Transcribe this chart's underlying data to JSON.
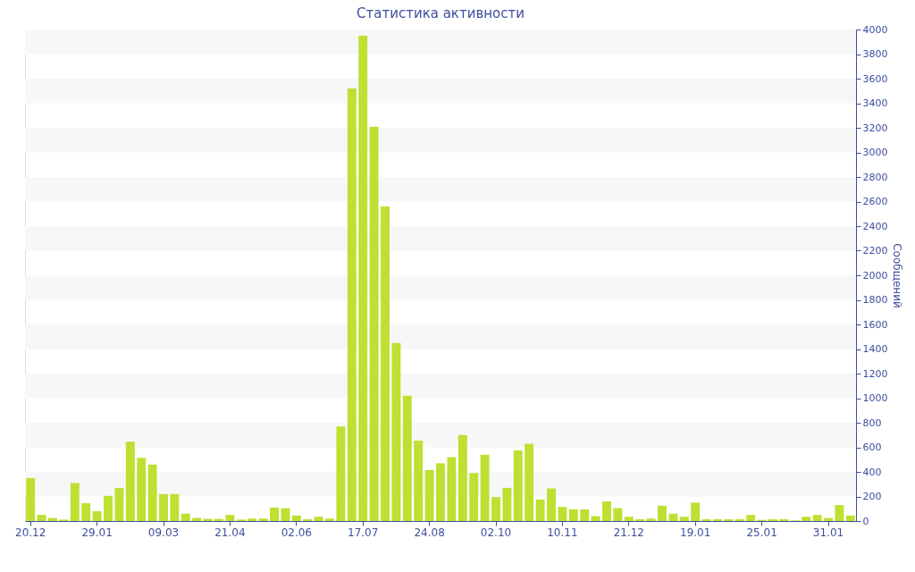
{
  "chart_data": {
    "type": "bar",
    "title": "Статистика активности",
    "ylabel": "Сообщений",
    "categories": [
      "20.12",
      null,
      null,
      null,
      null,
      null,
      "29.01",
      null,
      null,
      null,
      null,
      null,
      "09.03",
      null,
      null,
      null,
      null,
      null,
      "21.04",
      null,
      null,
      null,
      null,
      null,
      "02.06",
      null,
      null,
      null,
      null,
      null,
      "17.07",
      null,
      null,
      null,
      null,
      null,
      "24.08",
      null,
      null,
      null,
      null,
      null,
      "02.10",
      null,
      null,
      null,
      null,
      null,
      "10.11",
      null,
      null,
      null,
      null,
      null,
      "21.12",
      null,
      null,
      null,
      null,
      null,
      "19.01",
      null,
      null,
      null,
      null,
      null,
      "25.01",
      null,
      null,
      null,
      null,
      null,
      "31.01",
      null,
      null
    ],
    "values": [
      350,
      50,
      25,
      12,
      310,
      145,
      80,
      205,
      270,
      645,
      515,
      460,
      220,
      220,
      60,
      25,
      18,
      18,
      50,
      12,
      20,
      20,
      110,
      105,
      45,
      15,
      35,
      20,
      770,
      3520,
      3950,
      3210,
      2560,
      1450,
      1020,
      655,
      415,
      470,
      520,
      700,
      390,
      540,
      195,
      270,
      575,
      630,
      175,
      265,
      115,
      95,
      95,
      40,
      160,
      105,
      35,
      15,
      20,
      125,
      60,
      35,
      150,
      15,
      15,
      15,
      15,
      50,
      10,
      15,
      15,
      5,
      35,
      50,
      25,
      130,
      45
    ],
    "color": "#bde032",
    "ylim": [
      0,
      4000
    ],
    "yticks": [
      0,
      200,
      400,
      600,
      800,
      1000,
      1200,
      1400,
      1600,
      1800,
      2000,
      2200,
      2400,
      2600,
      2800,
      3000,
      3200,
      3400,
      3600,
      3800,
      4000
    ],
    "bands": [
      {
        "axis": "y",
        "from": 200,
        "to": 400,
        "color": "#f7f7f7"
      },
      {
        "axis": "y",
        "from": 600,
        "to": 800,
        "color": "#f7f7f7"
      },
      {
        "axis": "y",
        "from": 1000,
        "to": 1200,
        "color": "#f7f7f7"
      },
      {
        "axis": "y",
        "from": 1400,
        "to": 1600,
        "color": "#f7f7f7"
      },
      {
        "axis": "y",
        "from": 1800,
        "to": 2000,
        "color": "#f7f7f7"
      },
      {
        "axis": "y",
        "from": 2200,
        "to": 2400,
        "color": "#f7f7f7"
      },
      {
        "axis": "y",
        "from": 2600,
        "to": 2800,
        "color": "#f7f7f7"
      },
      {
        "axis": "y",
        "from": 3000,
        "to": 3200,
        "color": "#f7f7f7"
      },
      {
        "axis": "y",
        "from": 3400,
        "to": 3600,
        "color": "#f7f7f7"
      },
      {
        "axis": "y",
        "from": 3800,
        "to": 4000,
        "color": "#f7f7f7"
      }
    ]
  }
}
